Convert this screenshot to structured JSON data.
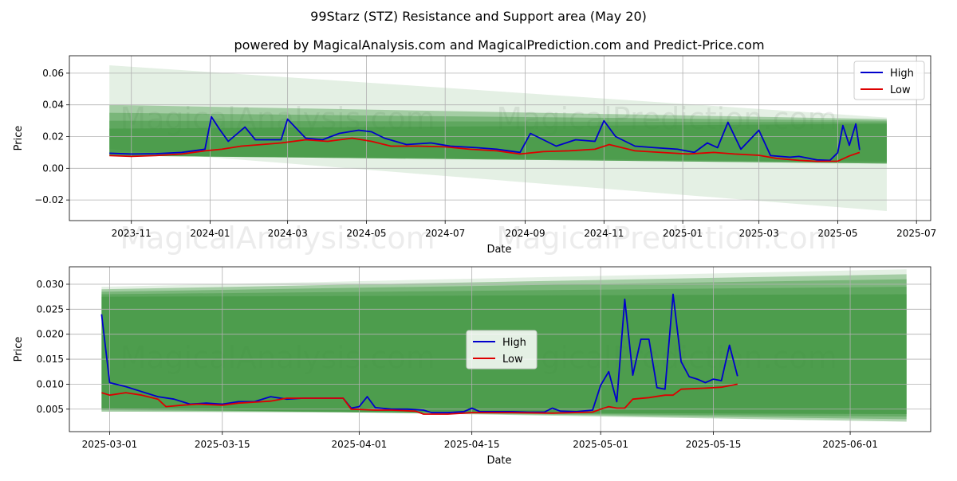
{
  "title": "99Starz (STZ) Resistance and Support area (May 20)",
  "subtitle": "powered by MagicalAnalysis.com and MagicalPrediction.com and Predict-Price.com",
  "watermarks": [
    "MagicalAnalysis.com",
    "MagicalPrediction.com"
  ],
  "colors": {
    "high": "#0000cc",
    "low": "#dd0000",
    "band": "#2e8b2e",
    "grid": "#b0b0b0"
  },
  "chart_data": [
    {
      "type": "line",
      "xlabel": "Date",
      "ylabel": "Price",
      "grid": true,
      "legend": "top-right",
      "xlim": [
        "2023-09-14",
        "2025-07-12"
      ],
      "ylim": [
        -0.033,
        0.071
      ],
      "xticks": [
        "2023-11",
        "2024-01",
        "2024-03",
        "2024-05",
        "2024-07",
        "2024-09",
        "2024-11",
        "2025-01",
        "2025-03",
        "2025-05",
        "2025-07"
      ],
      "yticks": [
        -0.02,
        0.0,
        0.02,
        0.04,
        0.06
      ],
      "ytick_labels": [
        "−0.02",
        "0.00",
        "0.02",
        "0.04",
        "0.06"
      ],
      "series": [
        {
          "name": "High",
          "x": [
            "2023-10-15",
            "2023-11-01",
            "2023-11-20",
            "2023-12-10",
            "2023-12-28",
            "2024-01-02",
            "2024-01-08",
            "2024-01-15",
            "2024-01-28",
            "2024-02-05",
            "2024-02-25",
            "2024-03-01",
            "2024-03-15",
            "2024-03-28",
            "2024-04-10",
            "2024-04-25",
            "2024-05-05",
            "2024-05-15",
            "2024-06-01",
            "2024-06-20",
            "2024-07-05",
            "2024-07-25",
            "2024-08-10",
            "2024-08-28",
            "2024-09-05",
            "2024-09-25",
            "2024-10-10",
            "2024-10-25",
            "2024-11-01",
            "2024-11-10",
            "2024-11-25",
            "2024-12-10",
            "2024-12-28",
            "2025-01-10",
            "2025-01-20",
            "2025-01-28",
            "2025-02-05",
            "2025-02-15",
            "2025-03-01",
            "2025-03-10",
            "2025-03-25",
            "2025-04-01",
            "2025-04-15",
            "2025-04-25",
            "2025-05-01",
            "2025-05-05",
            "2025-05-10",
            "2025-05-15",
            "2025-05-18"
          ],
          "y": [
            0.0095,
            0.009,
            0.0092,
            0.01,
            0.012,
            0.0325,
            0.025,
            0.017,
            0.026,
            0.018,
            0.018,
            0.031,
            0.019,
            0.018,
            0.022,
            0.024,
            0.023,
            0.019,
            0.015,
            0.016,
            0.014,
            0.013,
            0.012,
            0.01,
            0.022,
            0.014,
            0.018,
            0.017,
            0.03,
            0.02,
            0.014,
            0.013,
            0.012,
            0.01,
            0.016,
            0.013,
            0.029,
            0.012,
            0.024,
            0.008,
            0.007,
            0.0075,
            0.0053,
            0.005,
            0.0098,
            0.027,
            0.0145,
            0.028,
            0.0115
          ]
        },
        {
          "name": "Low",
          "x": [
            "2023-10-15",
            "2023-11-01",
            "2023-11-20",
            "2023-12-10",
            "2023-12-28",
            "2024-01-10",
            "2024-01-25",
            "2024-02-10",
            "2024-02-25",
            "2024-03-15",
            "2024-04-01",
            "2024-04-20",
            "2024-05-05",
            "2024-05-20",
            "2024-06-10",
            "2024-07-01",
            "2024-07-20",
            "2024-08-10",
            "2024-08-28",
            "2024-09-15",
            "2024-10-05",
            "2024-10-25",
            "2024-11-05",
            "2024-11-25",
            "2024-12-15",
            "2025-01-05",
            "2025-01-25",
            "2025-02-10",
            "2025-03-01",
            "2025-03-15",
            "2025-04-01",
            "2025-04-15",
            "2025-05-01",
            "2025-05-10",
            "2025-05-18"
          ],
          "y": [
            0.008,
            0.0075,
            0.008,
            0.009,
            0.011,
            0.012,
            0.014,
            0.015,
            0.016,
            0.018,
            0.017,
            0.019,
            0.017,
            0.014,
            0.014,
            0.0135,
            0.012,
            0.011,
            0.009,
            0.0105,
            0.011,
            0.012,
            0.015,
            0.011,
            0.01,
            0.009,
            0.01,
            0.009,
            0.0082,
            0.0062,
            0.005,
            0.0044,
            0.0045,
            0.0078,
            0.01
          ]
        }
      ]
    },
    {
      "type": "line",
      "xlabel": "Date",
      "ylabel": "Price",
      "grid": true,
      "legend": "center",
      "xlim": [
        "2025-02-24",
        "2025-06-11"
      ],
      "ylim": [
        0.0005,
        0.0335
      ],
      "xticks": [
        "2025-03-01",
        "2025-03-15",
        "2025-04-01",
        "2025-04-15",
        "2025-05-01",
        "2025-05-15",
        "2025-06-01"
      ],
      "yticks": [
        0.005,
        0.01,
        0.015,
        0.02,
        0.025,
        0.03
      ],
      "ytick_labels": [
        "0.005",
        "0.010",
        "0.015",
        "0.020",
        "0.025",
        "0.030"
      ],
      "series": [
        {
          "name": "High",
          "x": [
            "2025-02-28",
            "2025-03-01",
            "2025-03-03",
            "2025-03-05",
            "2025-03-07",
            "2025-03-09",
            "2025-03-11",
            "2025-03-13",
            "2025-03-15",
            "2025-03-17",
            "2025-03-19",
            "2025-03-21",
            "2025-03-23",
            "2025-03-25",
            "2025-03-27",
            "2025-03-29",
            "2025-03-30",
            "2025-03-31",
            "2025-04-01",
            "2025-04-02",
            "2025-04-03",
            "2025-04-05",
            "2025-04-07",
            "2025-04-09",
            "2025-04-10",
            "2025-04-12",
            "2025-04-14",
            "2025-04-15",
            "2025-04-16",
            "2025-04-18",
            "2025-04-20",
            "2025-04-22",
            "2025-04-24",
            "2025-04-25",
            "2025-04-26",
            "2025-04-28",
            "2025-04-30",
            "2025-05-01",
            "2025-05-02",
            "2025-05-03",
            "2025-05-04",
            "2025-05-05",
            "2025-05-06",
            "2025-05-07",
            "2025-05-08",
            "2025-05-09",
            "2025-05-10",
            "2025-05-11",
            "2025-05-12",
            "2025-05-13",
            "2025-05-14",
            "2025-05-15",
            "2025-05-16",
            "2025-05-17",
            "2025-05-18"
          ],
          "y": [
            0.024,
            0.0103,
            0.0095,
            0.0085,
            0.0075,
            0.007,
            0.006,
            0.0062,
            0.006,
            0.0065,
            0.0065,
            0.0075,
            0.007,
            0.0072,
            0.0072,
            0.0072,
            0.0072,
            0.0052,
            0.0055,
            0.0075,
            0.0053,
            0.005,
            0.005,
            0.0048,
            0.0043,
            0.0043,
            0.0045,
            0.0052,
            0.0045,
            0.0045,
            0.0045,
            0.0044,
            0.0044,
            0.0052,
            0.0046,
            0.0045,
            0.0048,
            0.0098,
            0.0125,
            0.0065,
            0.027,
            0.0118,
            0.019,
            0.019,
            0.0093,
            0.009,
            0.028,
            0.0145,
            0.0115,
            0.011,
            0.0103,
            0.011,
            0.0107,
            0.0178,
            0.0116
          ]
        },
        {
          "name": "Low",
          "x": [
            "2025-02-28",
            "2025-03-01",
            "2025-03-03",
            "2025-03-05",
            "2025-03-07",
            "2025-03-08",
            "2025-03-10",
            "2025-03-12",
            "2025-03-15",
            "2025-03-17",
            "2025-03-19",
            "2025-03-21",
            "2025-03-23",
            "2025-03-25",
            "2025-03-27",
            "2025-03-29",
            "2025-03-30",
            "2025-03-31",
            "2025-04-03",
            "2025-04-05",
            "2025-04-08",
            "2025-04-09",
            "2025-04-12",
            "2025-04-15",
            "2025-04-20",
            "2025-04-25",
            "2025-04-30",
            "2025-05-01",
            "2025-05-02",
            "2025-05-03",
            "2025-05-04",
            "2025-05-05",
            "2025-05-07",
            "2025-05-09",
            "2025-05-10",
            "2025-05-11",
            "2025-05-14",
            "2025-05-16",
            "2025-05-18"
          ],
          "y": [
            0.0083,
            0.0078,
            0.0083,
            0.0078,
            0.007,
            0.0055,
            0.0058,
            0.006,
            0.0058,
            0.0062,
            0.0064,
            0.0066,
            0.0072,
            0.0072,
            0.0072,
            0.0072,
            0.0072,
            0.005,
            0.0048,
            0.0048,
            0.0046,
            0.004,
            0.004,
            0.0043,
            0.0043,
            0.0042,
            0.0044,
            0.005,
            0.0055,
            0.0052,
            0.0052,
            0.007,
            0.0073,
            0.0078,
            0.0078,
            0.009,
            0.0092,
            0.0094,
            0.01
          ]
        }
      ]
    }
  ]
}
